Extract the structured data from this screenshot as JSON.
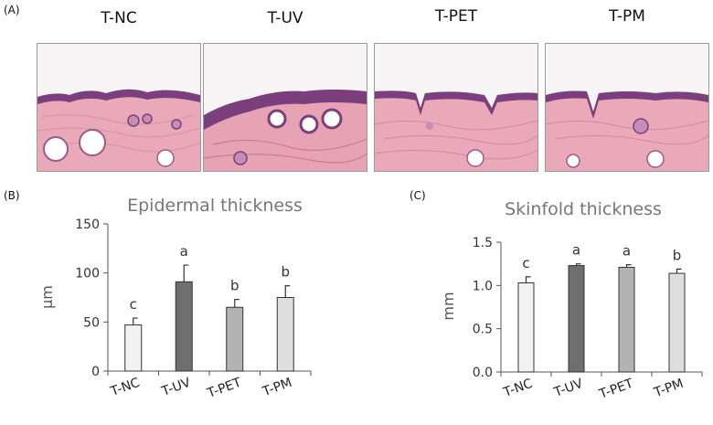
{
  "panel_labels": {
    "a": "(A)",
    "b": "(B)",
    "c": "(C)"
  },
  "micrographs": [
    {
      "label": "T-NC"
    },
    {
      "label": "T-UV"
    },
    {
      "label": "T-PET"
    },
    {
      "label": "T-PM"
    }
  ],
  "colors": {
    "bar_fills": [
      "#f2f2f2",
      "#6f6f6f",
      "#b3b3b3",
      "#dedede"
    ],
    "bar_stroke": "#333333",
    "axis": "#555555",
    "title": "#777777",
    "tissue_pink": "#e9a9b9",
    "epidermis_purple": "#7a3f7c"
  },
  "chart_data": [
    {
      "type": "bar",
      "title": "Epidermal thickness",
      "ylabel": "μm",
      "xlabel": "",
      "categories": [
        "T-NC",
        "T-UV",
        "T-PET",
        "T-PM"
      ],
      "values": [
        47,
        91,
        65,
        75
      ],
      "errors": [
        7,
        17,
        8,
        12
      ],
      "letters": [
        "c",
        "a",
        "b",
        "b"
      ],
      "ylim": [
        0,
        150
      ],
      "yticks": [
        0,
        50,
        100,
        150
      ],
      "ytick_labels": [
        "0",
        "50",
        "100",
        "150"
      ],
      "grid": false
    },
    {
      "type": "bar",
      "title": "Skinfold thickness",
      "ylabel": "mm",
      "xlabel": "",
      "categories": [
        "T-NC",
        "T-UV",
        "T-PET",
        "T-PM"
      ],
      "values": [
        1.03,
        1.23,
        1.21,
        1.14
      ],
      "errors": [
        0.07,
        0.02,
        0.03,
        0.05
      ],
      "letters": [
        "c",
        "a",
        "a",
        "b"
      ],
      "ylim": [
        0,
        1.5
      ],
      "yticks": [
        0,
        0.5,
        1.0,
        1.5
      ],
      "ytick_labels": [
        "0.0",
        "0.5",
        "1.0",
        "1.5"
      ],
      "grid": false
    }
  ]
}
